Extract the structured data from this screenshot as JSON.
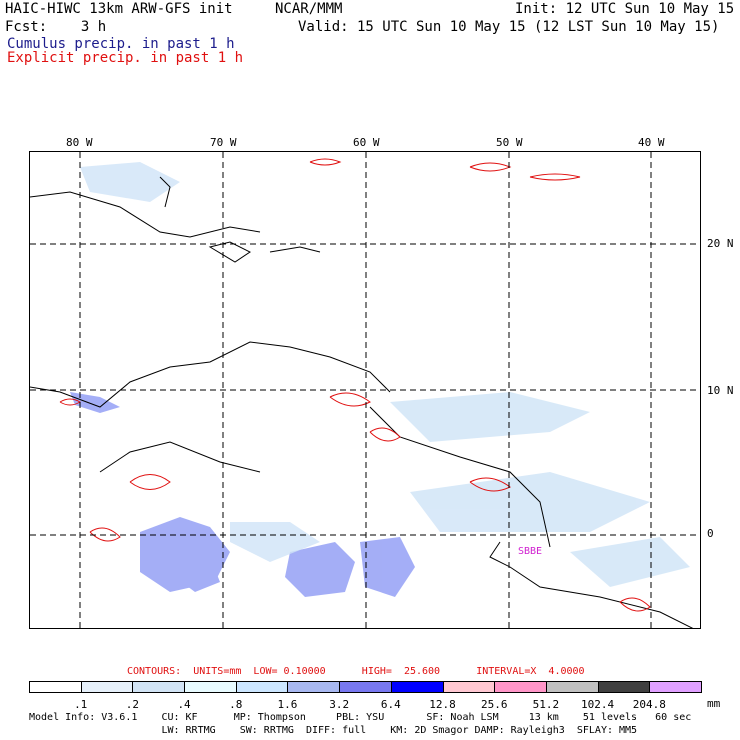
{
  "header": {
    "title_left": "HAIC-HIWC 13km ARW-GFS init",
    "title_center": "NCAR/MMM",
    "init": "Init: 12 UTC Sun 10 May 15",
    "fcst": "Fcst:    3 h",
    "valid": "Valid: 15 UTC Sun 10 May 15 (12 LST Sun 10 May 15)",
    "cumulus": "Cumulus precip. in past 1 h",
    "explicit": "Explicit precip. in past 1 h",
    "cumulus_color": "#1c1c8c",
    "explicit_color": "#e01010"
  },
  "map": {
    "lon_labels": [
      "80 W",
      "70 W",
      "60 W",
      "50 W",
      "40 W"
    ],
    "lat_labels": [
      "20 N",
      "10 N",
      "0"
    ],
    "place_labels": [
      "SBBE"
    ],
    "place_color": "#d020d0"
  },
  "contours": {
    "text": "CONTOURS:  UNITS=mm  LOW= 0.10000      HIGH=  25.600      INTERVAL=X  4.0000",
    "color": "#e01010"
  },
  "colorbar": {
    "units": "mm",
    "labels": [
      ".1",
      ".2",
      ".4",
      ".8",
      "1.6",
      "3.2",
      "6.4",
      "12.8",
      "25.6",
      "51.2",
      "102.4",
      "204.8"
    ],
    "colors": [
      "#ffffff",
      "#e6f0fa",
      "#d2e4f5",
      "#e8fbff",
      "#cce6ff",
      "#a8b8f0",
      "#7878f0",
      "#0000ff",
      "#ffc8d2",
      "#ff96c8",
      "#c0c0c0",
      "#404040",
      "#e0a0ff"
    ]
  },
  "model_info": {
    "line1": "Model Info: V3.6.1    CU: KF      MP: Thompson     PBL: YSU       SF: Noah LSM     13 km    51 levels   60 sec",
    "line2": "                      LW: RRTMG    SW: RRTMG  DIFF: full    KM: 2D Smagor DAMP: Rayleigh3  SFLAY: MM5"
  }
}
